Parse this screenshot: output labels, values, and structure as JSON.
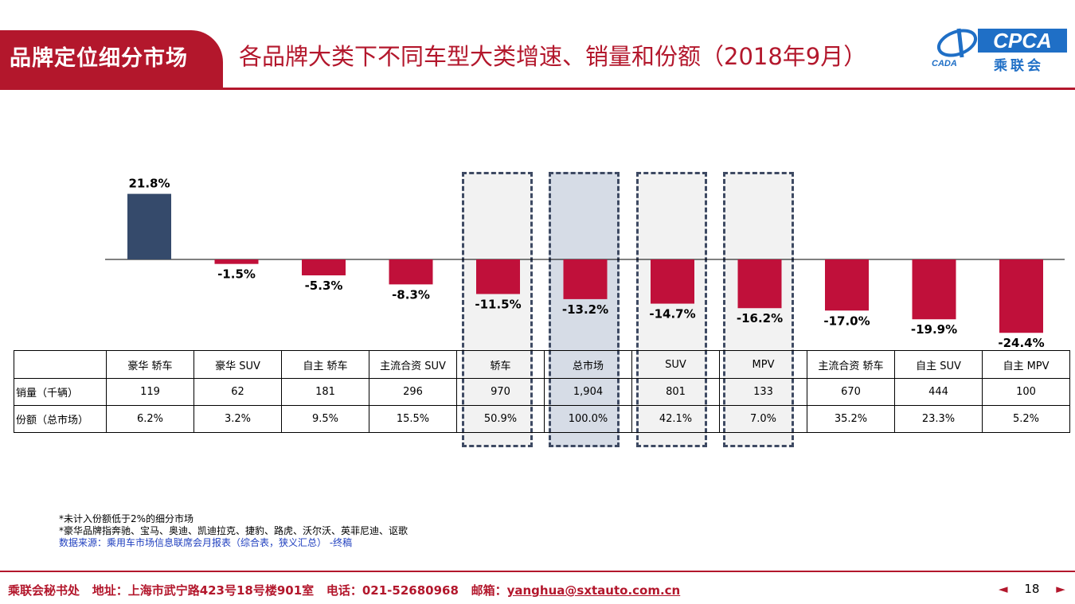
{
  "header": {
    "section_tab": "品牌定位细分市场",
    "title": "各品牌大类下不同车型大类增速、销量和份额（2018年9月）",
    "logo_text": "CPCA",
    "logo_subtext": "乘联会",
    "logo_left_text": "CADA"
  },
  "chart_data": {
    "type": "bar",
    "categories": [
      "豪华 轿车",
      "豪华 SUV",
      "自主 轿车",
      "主流合资 SUV",
      "轿车",
      "总市场",
      "SUV",
      "MPV",
      "主流合资 轿车",
      "自主 SUV",
      "自主 MPV"
    ],
    "values": [
      21.8,
      -1.5,
      -5.3,
      -8.3,
      -11.5,
      -13.2,
      -14.7,
      -16.2,
      -17.0,
      -19.9,
      -24.4
    ],
    "value_labels": [
      "21.8%",
      "-1.5%",
      "-5.3%",
      "-8.3%",
      "-11.5%",
      "-13.2%",
      "-14.7%",
      "-16.2%",
      "-17.0%",
      "-19.9%",
      "-24.4%"
    ],
    "title": "",
    "xlabel": "",
    "ylabel": "",
    "grid": false,
    "positive_color": "#354a6b",
    "negative_color": "#c0103a",
    "highlighted_categories": [
      "轿车",
      "总市场",
      "SUV",
      "MPV"
    ]
  },
  "table": {
    "rows": [
      {
        "label": "销量（千辆）",
        "values": [
          "119",
          "62",
          "181",
          "296",
          "970",
          "1,904",
          "801",
          "133",
          "670",
          "444",
          "100"
        ]
      },
      {
        "label": "份额（总市场）",
        "values": [
          "6.2%",
          "3.2%",
          "9.5%",
          "15.5%",
          "50.9%",
          "100.0%",
          "42.1%",
          "7.0%",
          "35.2%",
          "23.3%",
          "5.2%"
        ]
      }
    ]
  },
  "notes": {
    "line1": "*未计入份额低于2%的细分市场",
    "line2": "*豪华品牌指奔驰、宝马、奥迪、凯迪拉克、捷豹、路虎、沃尔沃、英菲尼迪、讴歌",
    "source": "数据来源：乘用车市场信息联席会月报表（综合表，狭义汇总） -终稿"
  },
  "footer": {
    "org": "乘联会秘书处",
    "address": "地址：上海市武宁路423号18号楼901室",
    "phone": "电话：021-52680968",
    "email_label": "邮箱：",
    "email": "yanghua@sxtauto.com.cn",
    "page": "18",
    "prev_icon": "◄",
    "next_icon": "►"
  }
}
